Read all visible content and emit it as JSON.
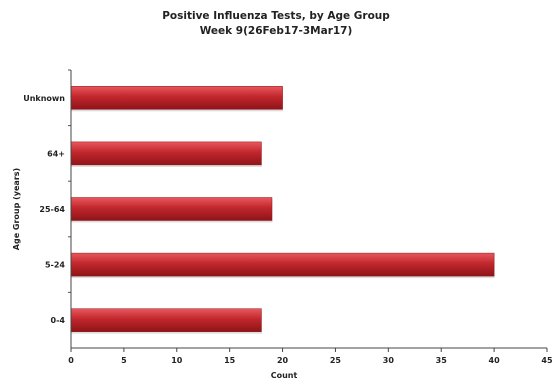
{
  "chart_data": {
    "type": "bar",
    "orientation": "horizontal",
    "title": "Positive Influenza Tests, by Age Group",
    "subtitle": "Week 9(26Feb17-3Mar17)",
    "xlabel": "Count",
    "ylabel": "Age Group (years)",
    "categories": [
      "Unknown",
      "64+",
      "25-64",
      "5-24",
      "0-4"
    ],
    "values": [
      20,
      18,
      19,
      40,
      18
    ],
    "xlim": [
      0,
      45
    ],
    "xticks": [
      "0",
      "5",
      "10",
      "15",
      "20",
      "25",
      "30",
      "35",
      "40",
      "45"
    ],
    "grid": false,
    "bar_color": "#c1272d"
  }
}
